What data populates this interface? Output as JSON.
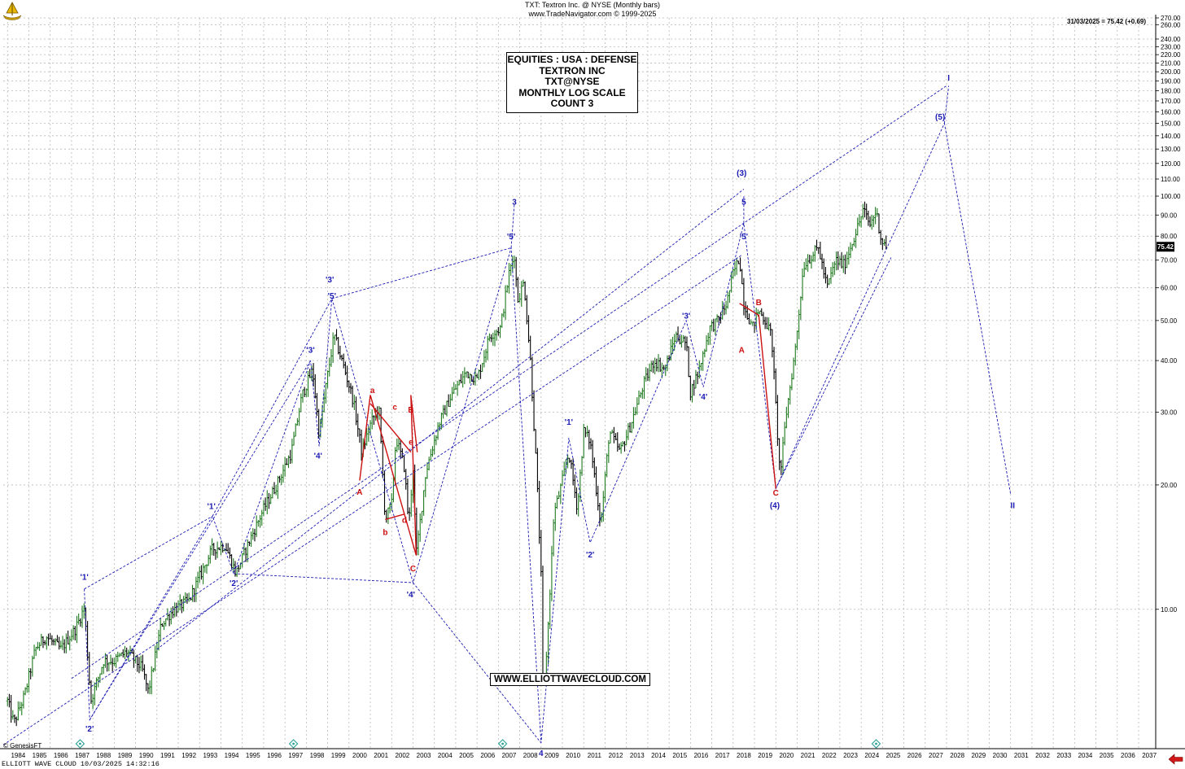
{
  "header": {
    "line1": "TXT:  Textron Inc. @ NYSE  (Monthly bars)",
    "line2": "www.TradeNavigator.com © 1999-2025"
  },
  "last_quote": "31/03/2025 = 75.42 (+0.69)",
  "title_box": [
    "EQUITIES : USA : DEFENSE",
    "TEXTRON INC",
    "TXT@NYSE",
    "MONTHLY LOG SCALE",
    "COUNT 3"
  ],
  "url_box": "WWW.ELLIOTTWAVECLOUD.COM",
  "footer": "ELLIOTT WAVE CLOUD    10/03/2025 14:32:16",
  "copyright": "© GenesisFT",
  "colors": {
    "up": "#1f7a1f",
    "down": "#000000",
    "wave_blue": "#1a1ab3",
    "wave_red": "#cc1111",
    "grid": "#b8b8b8",
    "last_price_bg": "#000000"
  },
  "icons": {
    "logo": "navigator-ship-icon",
    "cycle_markers": "cycle-marker-icon",
    "back": "back-arrow-icon"
  },
  "chart_data": {
    "type": "candlestick",
    "scale": "log",
    "ylim": [
      4.6,
      270
    ],
    "xlim": [
      1983.8,
      2037.8
    ],
    "y_ticks": [
      10,
      20,
      30,
      40,
      50,
      60,
      70,
      80,
      90,
      100,
      110,
      120,
      130,
      140,
      150,
      160,
      170,
      180,
      190,
      200,
      210,
      220,
      230,
      240,
      260,
      270
    ],
    "y_tick_labels": [
      "10.00",
      "20.00",
      "30.00",
      "40.00",
      "50.00",
      "60.00",
      "70.00",
      "80.00",
      "90.00",
      "100.00",
      "110.00",
      "120.00",
      "130.00",
      "140.00",
      "150.00",
      "160.00",
      "170.00",
      "180.00",
      "190.00",
      "200.00",
      "210.00",
      "220.00",
      "230.00",
      "240.00",
      "260.00",
      "270.00"
    ],
    "x_ticks": [
      "1984",
      "1985",
      "1986",
      "1987",
      "1988",
      "1989",
      "1990",
      "1991",
      "1992",
      "1993",
      "1994",
      "1995",
      "1996",
      "1997",
      "1998",
      "1999",
      "2000",
      "2001",
      "2002",
      "2003",
      "2004",
      "2005",
      "2006",
      "2007",
      "2008",
      "2009",
      "2010",
      "2011",
      "2012",
      "2013",
      "2014",
      "2015",
      "2016",
      "2017",
      "2018",
      "2019",
      "2020",
      "2021",
      "2022",
      "2023",
      "2024",
      "2025",
      "2026",
      "2027",
      "2028",
      "2029",
      "2030",
      "2031",
      "2032",
      "2033",
      "2034",
      "2035",
      "2036",
      "2037"
    ],
    "last_price": 75.42,
    "last_price_label": "75.42",
    "price_path": [
      [
        1984.0,
        6.0
      ],
      [
        1984.3,
        5.3
      ],
      [
        1984.8,
        6.2
      ],
      [
        1985.3,
        8.0
      ],
      [
        1985.8,
        8.6
      ],
      [
        1986.5,
        8.0
      ],
      [
        1987.2,
        9.0
      ],
      [
        1987.6,
        10.1
      ],
      [
        1987.9,
        6.0
      ],
      [
        1988.5,
        7.5
      ],
      [
        1989.0,
        7.5
      ],
      [
        1989.6,
        7.9
      ],
      [
        1990.3,
        7.2
      ],
      [
        1990.6,
        6.3
      ],
      [
        1991.2,
        9.2
      ],
      [
        1991.8,
        10.0
      ],
      [
        1992.5,
        10.5
      ],
      [
        1993.0,
        12.0
      ],
      [
        1993.6,
        14.0
      ],
      [
        1994.2,
        14.3
      ],
      [
        1994.7,
        12.2
      ],
      [
        1995.3,
        14.5
      ],
      [
        1996.0,
        17.5
      ],
      [
        1996.6,
        20.0
      ],
      [
        1997.3,
        24.0
      ],
      [
        1997.8,
        33.0
      ],
      [
        1998.3,
        38.0
      ],
      [
        1998.6,
        26.5
      ],
      [
        1999.0,
        37.0
      ],
      [
        1999.3,
        46.0
      ],
      [
        1999.8,
        38.0
      ],
      [
        2000.2,
        32.0
      ],
      [
        2000.6,
        24.0
      ],
      [
        2001.0,
        28.0
      ],
      [
        2001.4,
        31.0
      ],
      [
        2001.7,
        16.5
      ],
      [
        2002.0,
        18.0
      ],
      [
        2002.2,
        26.0
      ],
      [
        2002.6,
        22.0
      ],
      [
        2002.8,
        16.0
      ],
      [
        2003.0,
        22.0
      ],
      [
        2003.15,
        13.5
      ],
      [
        2003.6,
        21.5
      ],
      [
        2004.2,
        28.0
      ],
      [
        2004.8,
        33.0
      ],
      [
        2005.5,
        37.5
      ],
      [
        2006.0,
        36.0
      ],
      [
        2006.6,
        46.0
      ],
      [
        2007.1,
        48.0
      ],
      [
        2007.5,
        65.0
      ],
      [
        2007.75,
        72.0
      ],
      [
        2007.9,
        56.0
      ],
      [
        2008.2,
        62.0
      ],
      [
        2008.5,
        40.0
      ],
      [
        2008.8,
        21.0
      ],
      [
        2009.0,
        12.0
      ],
      [
        2009.1,
        6.0
      ],
      [
        2009.3,
        8.5
      ],
      [
        2009.6,
        17.0
      ],
      [
        2009.9,
        19.5
      ],
      [
        2010.3,
        24.0
      ],
      [
        2010.7,
        17.5
      ],
      [
        2011.0,
        27.0
      ],
      [
        2011.3,
        25.5
      ],
      [
        2011.8,
        16.0
      ],
      [
        2012.2,
        27.0
      ],
      [
        2012.7,
        24.0
      ],
      [
        2013.2,
        28.0
      ],
      [
        2013.8,
        35.0
      ],
      [
        2014.3,
        40.0
      ],
      [
        2014.8,
        38.0
      ],
      [
        2015.3,
        46.0
      ],
      [
        2015.8,
        44.0
      ],
      [
        2016.0,
        33.5
      ],
      [
        2016.4,
        38.0
      ],
      [
        2016.9,
        48.0
      ],
      [
        2017.3,
        50.0
      ],
      [
        2017.7,
        55.0
      ],
      [
        2018.0,
        65.0
      ],
      [
        2018.3,
        71.0
      ],
      [
        2018.5,
        55.0
      ],
      [
        2018.9,
        48.0
      ],
      [
        2019.2,
        53.0
      ],
      [
        2019.5,
        50.0
      ],
      [
        2019.8,
        46.0
      ],
      [
        2020.2,
        21.0
      ],
      [
        2020.5,
        30.0
      ],
      [
        2020.9,
        42.0
      ],
      [
        2021.3,
        68.0
      ],
      [
        2021.7,
        72.0
      ],
      [
        2022.0,
        75.0
      ],
      [
        2022.4,
        60.0
      ],
      [
        2022.8,
        70.0
      ],
      [
        2023.2,
        68.0
      ],
      [
        2023.6,
        78.0
      ],
      [
        2023.9,
        86.0
      ],
      [
        2024.1,
        93.0
      ],
      [
        2024.4,
        85.0
      ],
      [
        2024.7,
        92.0
      ],
      [
        2024.95,
        78.0
      ],
      [
        2025.2,
        75.42
      ]
    ],
    "wave_lines": [
      {
        "color": "blue",
        "points": [
          [
            1987.6,
            11.2
          ],
          [
            1987.85,
            5.4
          ],
          [
            1993.6,
            16.8
          ],
          [
            1994.6,
            12.2
          ],
          [
            1998.2,
            40.0
          ],
          [
            1998.6,
            24.8
          ],
          [
            1999.2,
            56.5
          ],
          [
            2003.0,
            11.6
          ],
          [
            2007.6,
            75.0
          ],
          [
            2009.0,
            4.75
          ],
          [
            2010.3,
            26.0
          ],
          [
            2011.3,
            14.5
          ],
          [
            2015.8,
            50.0
          ],
          [
            2016.6,
            34.5
          ],
          [
            2018.5,
            86.0
          ],
          [
            2020.0,
            19.6
          ],
          [
            2027.9,
            150.0
          ],
          [
            2031.0,
            19.0
          ]
        ]
      },
      {
        "color": "blue",
        "points": [
          [
            1987.85,
            5.4
          ],
          [
            1998.2,
            40.0
          ]
        ]
      },
      {
        "color": "blue",
        "points": [
          [
            1987.6,
            11.2
          ],
          [
            1993.6,
            16.8
          ]
        ]
      },
      {
        "color": "blue",
        "points": [
          [
            1993.6,
            16.8
          ],
          [
            1999.2,
            56.5
          ]
        ]
      },
      {
        "color": "blue",
        "points": [
          [
            1994.6,
            12.2
          ],
          [
            2003.0,
            11.6
          ]
        ]
      },
      {
        "color": "blue",
        "points": [
          [
            1999.2,
            56.5
          ],
          [
            2007.6,
            75.0
          ]
        ]
      },
      {
        "color": "blue",
        "points": [
          [
            2003.0,
            11.6
          ],
          [
            2009.0,
            4.75
          ]
        ]
      },
      {
        "color": "blue",
        "points": [
          [
            1983.8,
            4.7
          ],
          [
            2018.4,
            72.0
          ]
        ]
      },
      {
        "color": "blue",
        "points": [
          [
            1987.0,
            6.8
          ],
          [
            2028.0,
            185.0
          ]
        ]
      },
      {
        "color": "blue",
        "points": [
          [
            1991.0,
            8.0
          ],
          [
            2018.5,
            104.0
          ]
        ]
      },
      {
        "color": "blue",
        "points": [
          [
            2020.0,
            19.6
          ],
          [
            2025.4,
            71.0
          ]
        ]
      },
      {
        "color": "blue",
        "points": [
          [
            2007.6,
            75.0
          ],
          [
            2007.75,
            96.0
          ]
        ]
      },
      {
        "color": "blue",
        "points": [
          [
            2018.5,
            86.0
          ],
          [
            2018.5,
            100.0
          ]
        ]
      },
      {
        "color": "blue",
        "points": [
          [
            2027.9,
            150.0
          ],
          [
            2028.1,
            185.0
          ]
        ]
      },
      {
        "color": "red",
        "points": [
          [
            2000.5,
            20.5
          ],
          [
            2001.0,
            33.0
          ],
          [
            2003.15,
            13.5
          ],
          [
            2002.9,
            33.0
          ],
          [
            2003.2,
            24.0
          ]
        ]
      },
      {
        "color": "red",
        "points": [
          [
            2001.0,
            31.5
          ],
          [
            2002.9,
            24.0
          ]
        ]
      },
      {
        "color": "red",
        "points": [
          [
            2001.7,
            16.5
          ],
          [
            2002.6,
            17.0
          ]
        ]
      },
      {
        "color": "red",
        "points": [
          [
            2018.3,
            55.0
          ],
          [
            2019.2,
            51.5
          ],
          [
            2020.0,
            19.6
          ]
        ]
      }
    ],
    "wave_labels": [
      {
        "text": "'1'",
        "x": 1987.6,
        "y": 12.0,
        "color": "blue"
      },
      {
        "text": "'2'",
        "x": 1987.85,
        "y": 5.15,
        "color": "blue"
      },
      {
        "text": "'1'",
        "x": 1993.55,
        "y": 17.8,
        "color": "blue"
      },
      {
        "text": "'2'",
        "x": 1994.6,
        "y": 11.6,
        "color": "blue"
      },
      {
        "text": "'3'",
        "x": 1998.2,
        "y": 42.5,
        "color": "blue"
      },
      {
        "text": "'4'",
        "x": 1998.55,
        "y": 23.6,
        "color": "blue"
      },
      {
        "text": "'3'",
        "x": 1999.1,
        "y": 63.0,
        "color": "blue"
      },
      {
        "text": "'5'",
        "x": 1999.2,
        "y": 57.5,
        "color": "blue"
      },
      {
        "text": "A",
        "x": 2000.5,
        "y": 19.3,
        "color": "red"
      },
      {
        "text": "a",
        "x": 2001.1,
        "y": 34.0,
        "color": "red"
      },
      {
        "text": "b",
        "x": 2001.7,
        "y": 15.4,
        "color": "red"
      },
      {
        "text": "c",
        "x": 2002.15,
        "y": 31.0,
        "color": "red"
      },
      {
        "text": "d",
        "x": 2002.6,
        "y": 16.5,
        "color": "red"
      },
      {
        "text": "B",
        "x": 2002.9,
        "y": 30.5,
        "color": "red"
      },
      {
        "text": "e",
        "x": 2002.9,
        "y": 25.5,
        "color": "red"
      },
      {
        "text": "C",
        "x": 2003.0,
        "y": 12.6,
        "color": "red"
      },
      {
        "text": "'4'",
        "x": 2002.9,
        "y": 10.9,
        "color": "blue"
      },
      {
        "text": "3",
        "x": 2007.75,
        "y": 97.0,
        "color": "blue"
      },
      {
        "text": "'5'",
        "x": 2007.6,
        "y": 80.0,
        "color": "blue"
      },
      {
        "text": "4",
        "x": 2009.0,
        "y": 4.5,
        "color": "blue"
      },
      {
        "text": "'1'",
        "x": 2010.3,
        "y": 28.5,
        "color": "blue"
      },
      {
        "text": "'2'",
        "x": 2011.3,
        "y": 13.6,
        "color": "blue"
      },
      {
        "text": "'3'",
        "x": 2015.8,
        "y": 51.5,
        "color": "blue"
      },
      {
        "text": "'4'",
        "x": 2016.6,
        "y": 32.8,
        "color": "blue"
      },
      {
        "text": "(3)",
        "x": 2018.4,
        "y": 114.0,
        "color": "blue"
      },
      {
        "text": "5",
        "x": 2018.5,
        "y": 97.0,
        "color": "blue"
      },
      {
        "text": "'5'",
        "x": 2018.5,
        "y": 80.0,
        "color": "blue"
      },
      {
        "text": "A",
        "x": 2018.4,
        "y": 42.5,
        "color": "red"
      },
      {
        "text": "B",
        "x": 2019.2,
        "y": 55.5,
        "color": "red"
      },
      {
        "text": "C",
        "x": 2020.0,
        "y": 19.2,
        "color": "red"
      },
      {
        "text": "(4)",
        "x": 2019.95,
        "y": 17.9,
        "color": "blue"
      },
      {
        "text": "I",
        "x": 2028.1,
        "y": 194.0,
        "color": "blue"
      },
      {
        "text": "(5)",
        "x": 2027.7,
        "y": 156.0,
        "color": "blue"
      },
      {
        "text": "II",
        "x": 2031.1,
        "y": 17.9,
        "color": "blue"
      }
    ],
    "cycle_markers": [
      1987.4,
      1997.4,
      2007.2,
      2024.7
    ]
  }
}
